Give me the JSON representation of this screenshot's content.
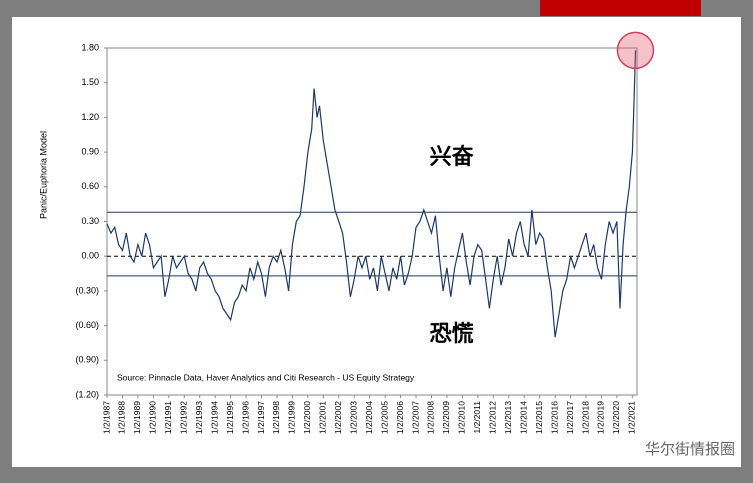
{
  "chart_data": {
    "type": "line",
    "y_label": "Panic/Euphoria Model",
    "source": "Source: Pinnacle Data, Haver Analytics and Citi Research - US Equity Strategy",
    "annotations": [
      {
        "text": "兴奋",
        "x": 2009.3,
        "y": 0.85
      },
      {
        "text": "恐慌",
        "x": 2009.3,
        "y": -0.68
      }
    ],
    "reference_lines": [
      0.38,
      -0.17
    ],
    "watermark": "华尔街情报圈",
    "color": "#1f3864",
    "x": [
      1987.0,
      1987.25,
      1987.5,
      1987.75,
      1988.0,
      1988.25,
      1988.5,
      1988.75,
      1989.0,
      1989.25,
      1989.5,
      1989.75,
      1990.0,
      1990.25,
      1990.5,
      1990.75,
      1991.0,
      1991.25,
      1991.5,
      1991.75,
      1992.0,
      1992.25,
      1992.5,
      1992.75,
      1993.0,
      1993.25,
      1993.5,
      1993.75,
      1994.0,
      1994.25,
      1994.5,
      1994.75,
      1995.0,
      1995.25,
      1995.5,
      1995.75,
      1996.0,
      1996.25,
      1996.5,
      1996.75,
      1997.0,
      1997.25,
      1997.5,
      1997.75,
      1998.0,
      1998.25,
      1998.5,
      1998.75,
      1999.0,
      1999.25,
      1999.5,
      1999.75,
      2000.0,
      2000.25,
      2000.4,
      2000.6,
      2000.75,
      2001.0,
      2001.25,
      2001.5,
      2001.75,
      2002.0,
      2002.25,
      2002.5,
      2002.75,
      2003.0,
      2003.25,
      2003.5,
      2003.75,
      2004.0,
      2004.25,
      2004.5,
      2004.75,
      2005.0,
      2005.25,
      2005.5,
      2005.75,
      2006.0,
      2006.25,
      2006.5,
      2006.75,
      2007.0,
      2007.25,
      2007.5,
      2007.75,
      2008.0,
      2008.25,
      2008.5,
      2008.75,
      2009.0,
      2009.25,
      2009.5,
      2009.75,
      2010.0,
      2010.25,
      2010.5,
      2010.75,
      2011.0,
      2011.25,
      2011.5,
      2011.75,
      2012.0,
      2012.25,
      2012.5,
      2012.75,
      2013.0,
      2013.25,
      2013.5,
      2013.75,
      2014.0,
      2014.25,
      2014.5,
      2014.75,
      2015.0,
      2015.25,
      2015.5,
      2015.75,
      2016.0,
      2016.25,
      2016.5,
      2016.75,
      2017.0,
      2017.25,
      2017.5,
      2017.75,
      2018.0,
      2018.25,
      2018.5,
      2018.75,
      2019.0,
      2019.25,
      2019.5,
      2019.75,
      2020.0,
      2020.2,
      2020.4,
      2020.6,
      2020.8,
      2021.0,
      2021.1,
      2021.2
    ],
    "values": [
      0.28,
      0.2,
      0.25,
      0.1,
      0.05,
      0.2,
      0.0,
      -0.05,
      0.1,
      0.0,
      0.2,
      0.1,
      -0.1,
      -0.05,
      0.0,
      -0.35,
      -0.2,
      0.0,
      -0.1,
      -0.05,
      0.0,
      -0.15,
      -0.2,
      -0.3,
      -0.1,
      -0.05,
      -0.15,
      -0.2,
      -0.3,
      -0.35,
      -0.45,
      -0.5,
      -0.55,
      -0.4,
      -0.35,
      -0.25,
      -0.3,
      -0.1,
      -0.2,
      -0.05,
      -0.15,
      -0.35,
      -0.1,
      0.0,
      -0.05,
      0.05,
      -0.1,
      -0.3,
      0.1,
      0.3,
      0.35,
      0.6,
      0.9,
      1.1,
      1.45,
      1.2,
      1.3,
      1.0,
      0.8,
      0.6,
      0.4,
      0.3,
      0.2,
      -0.05,
      -0.35,
      -0.2,
      0.0,
      -0.1,
      0.0,
      -0.2,
      -0.1,
      -0.3,
      0.0,
      -0.15,
      -0.3,
      -0.1,
      -0.2,
      0.0,
      -0.25,
      -0.15,
      0.0,
      0.25,
      0.3,
      0.4,
      0.3,
      0.2,
      0.35,
      0.0,
      -0.3,
      -0.1,
      -0.35,
      -0.1,
      0.05,
      0.2,
      -0.05,
      -0.25,
      0.0,
      0.1,
      0.05,
      -0.2,
      -0.45,
      -0.2,
      0.0,
      -0.25,
      -0.1,
      0.15,
      0.0,
      0.2,
      0.3,
      0.1,
      0.0,
      0.4,
      0.1,
      0.2,
      0.15,
      -0.1,
      -0.3,
      -0.7,
      -0.5,
      -0.3,
      -0.2,
      0.0,
      -0.1,
      0.0,
      0.1,
      0.2,
      0.0,
      0.1,
      -0.1,
      -0.2,
      0.1,
      0.3,
      0.2,
      0.3,
      -0.45,
      0.1,
      0.4,
      0.6,
      0.9,
      1.3,
      1.78
    ],
    "xlim": [
      1987,
      2021.3
    ],
    "xticks": [
      {
        "value": 1987,
        "label": "1/2/1987"
      },
      {
        "value": 1988,
        "label": "1/2/1988"
      },
      {
        "value": 1989,
        "label": "1/2/1989"
      },
      {
        "value": 1990,
        "label": "1/2/1990"
      },
      {
        "value": 1991,
        "label": "1/2/1991"
      },
      {
        "value": 1992,
        "label": "1/2/1992"
      },
      {
        "value": 1993,
        "label": "1/2/1993"
      },
      {
        "value": 1994,
        "label": "1/2/1994"
      },
      {
        "value": 1995,
        "label": "1/2/1995"
      },
      {
        "value": 1996,
        "label": "1/2/1996"
      },
      {
        "value": 1997,
        "label": "1/2/1997"
      },
      {
        "value": 1998,
        "label": "1/2/1998"
      },
      {
        "value": 1999,
        "label": "1/2/1999"
      },
      {
        "value": 2000,
        "label": "1/2/2000"
      },
      {
        "value": 2001,
        "label": "1/2/2001"
      },
      {
        "value": 2002,
        "label": "1/2/2002"
      },
      {
        "value": 2003,
        "label": "1/2/2003"
      },
      {
        "value": 2004,
        "label": "1/2/2004"
      },
      {
        "value": 2005,
        "label": "1/2/2005"
      },
      {
        "value": 2006,
        "label": "1/2/2006"
      },
      {
        "value": 2007,
        "label": "1/2/2007"
      },
      {
        "value": 2008,
        "label": "1/2/2008"
      },
      {
        "value": 2009,
        "label": "1/2/2009"
      },
      {
        "value": 2010,
        "label": "1/2/2010"
      },
      {
        "value": 2011,
        "label": "1/2/2011"
      },
      {
        "value": 2012,
        "label": "1/2/2012"
      },
      {
        "value": 2013,
        "label": "1/2/2013"
      },
      {
        "value": 2014,
        "label": "1/2/2014"
      },
      {
        "value": 2015,
        "label": "1/2/2015"
      },
      {
        "value": 2016,
        "label": "1/2/2016"
      },
      {
        "value": 2017,
        "label": "1/2/2017"
      },
      {
        "value": 2018,
        "label": "1/2/2018"
      },
      {
        "value": 2019,
        "label": "1/2/2019"
      },
      {
        "value": 2020,
        "label": "1/2/2020"
      },
      {
        "value": 2021,
        "label": "1/2/2021"
      }
    ],
    "ylim": [
      -1.2,
      1.8
    ],
    "yticks": [
      {
        "value": 1.8,
        "label": "1.80"
      },
      {
        "value": 1.5,
        "label": "1.50"
      },
      {
        "value": 1.2,
        "label": "1.20"
      },
      {
        "value": 0.9,
        "label": "0.90"
      },
      {
        "value": 0.6,
        "label": "0.60"
      },
      {
        "value": 0.3,
        "label": "0.30"
      },
      {
        "value": 0,
        "label": "0.00"
      },
      {
        "value": -0.3,
        "label": "(0.30)"
      },
      {
        "value": -0.6,
        "label": "(0.60)"
      },
      {
        "value": -0.9,
        "label": "(0.90)"
      },
      {
        "value": -1.2,
        "label": "(1.20)"
      }
    ]
  }
}
